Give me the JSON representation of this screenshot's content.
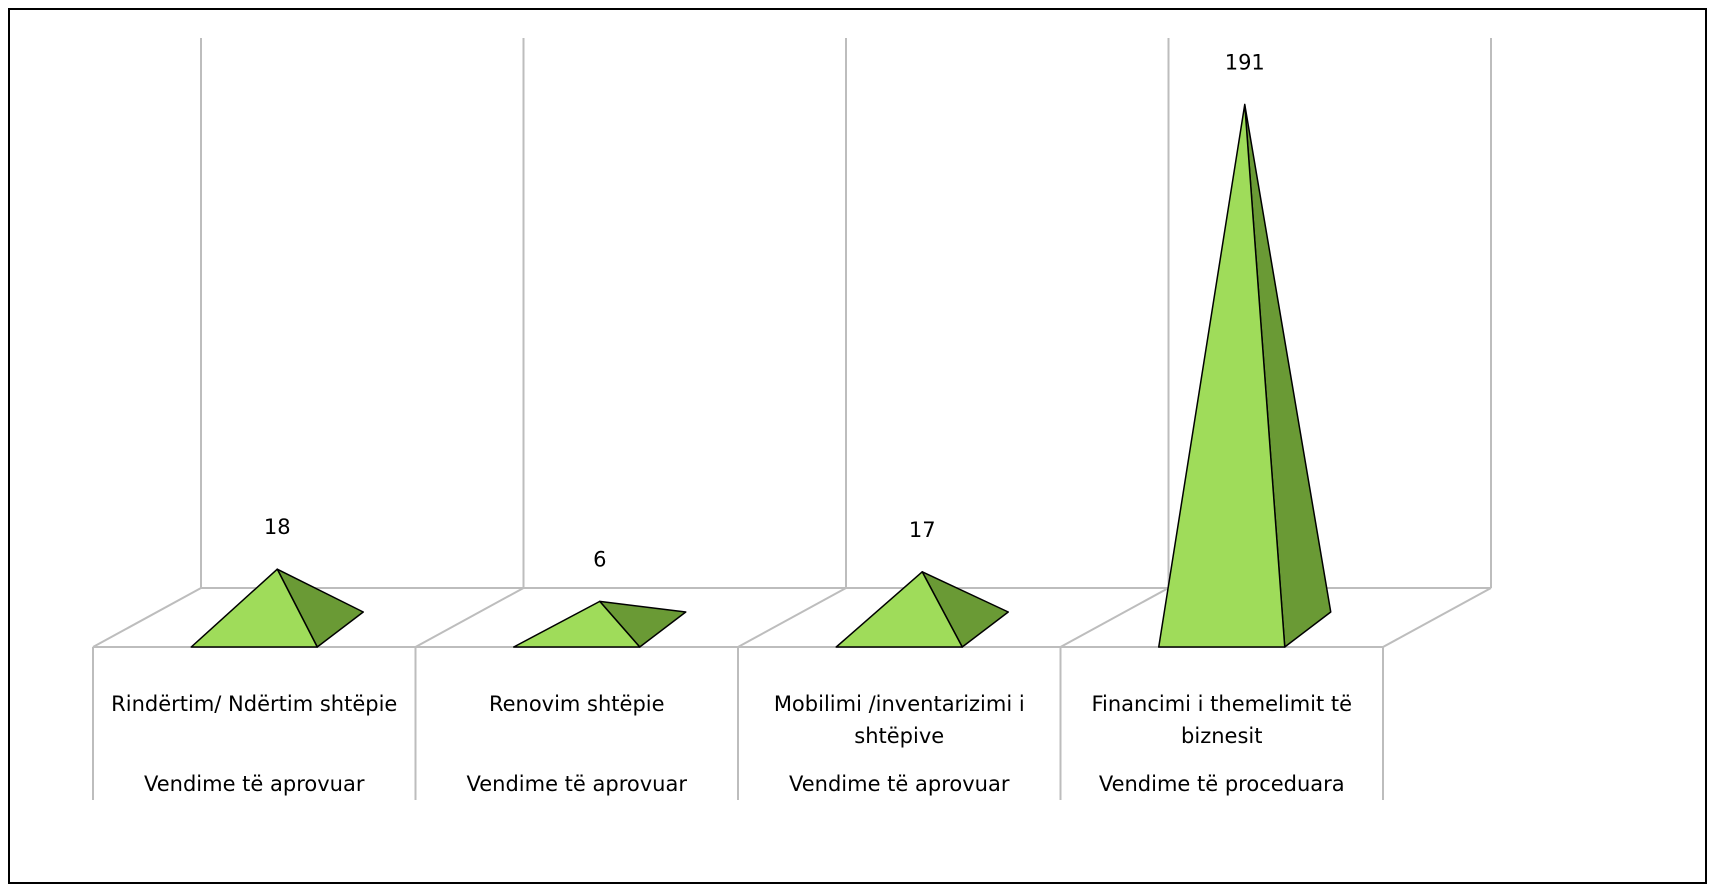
{
  "chart_data": {
    "type": "pyramid",
    "categories": [
      "Rindërtim/ Ndërtim shtëpie",
      "Renovim shtëpie",
      "Mobilimi /inventarizimi i shtëpive",
      "Financimi i themelimit të biznesit"
    ],
    "category_groups": [
      "Vendime të aprovuar",
      "Vendime të aprovuar",
      "Vendime të aprovuar",
      "Vendime të proceduara"
    ],
    "values": [
      18,
      6,
      17,
      191
    ],
    "color": "#9fdc5a",
    "side_color": "#6a9a35"
  }
}
